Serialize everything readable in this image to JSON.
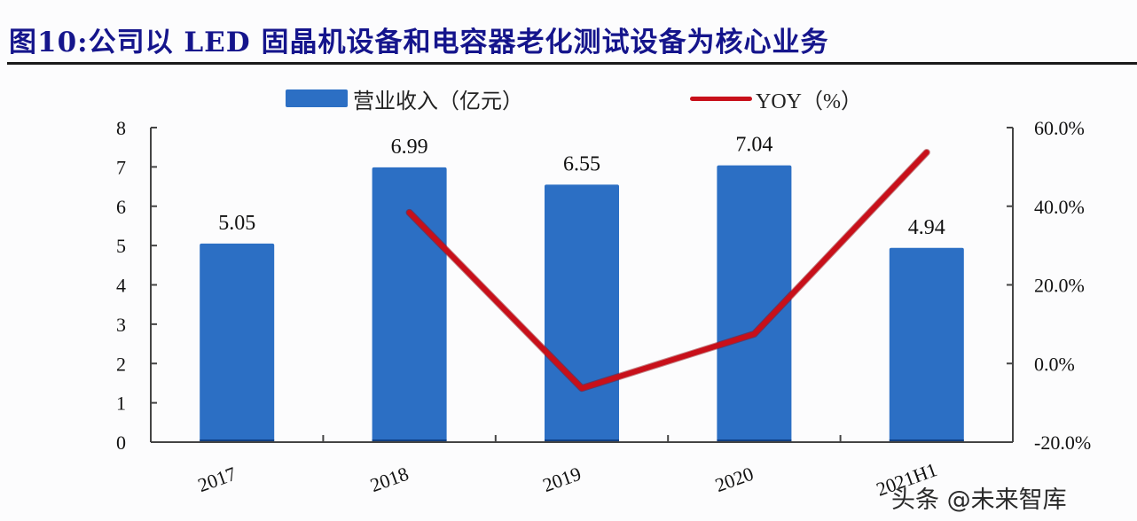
{
  "title": "图10:公司以 LED 固晶机设备和电容器老化测试设备为核心业务",
  "legend": {
    "bar_label": "营业收入（亿元）",
    "line_label": "YOY（%）"
  },
  "watermark": "头条 @未来智库",
  "colors": {
    "bar": "#2c6fc4",
    "line": "#c8101a",
    "title": "#15158c"
  },
  "left_axis_ticks": [
    "0",
    "1",
    "2",
    "3",
    "4",
    "5",
    "6",
    "7",
    "8"
  ],
  "right_axis_ticks": [
    "-20.0%",
    "0.0%",
    "20.0%",
    "40.0%",
    "60.0%"
  ],
  "chart_data": {
    "type": "bar",
    "title": "图10:公司以 LED 固晶机设备和电容器老化测试设备为核心业务",
    "categories": [
      "2017",
      "2018",
      "2019",
      "2020",
      "2021H1"
    ],
    "series": [
      {
        "name": "营业收入（亿元）",
        "type": "bar",
        "axis": "left",
        "values": [
          5.05,
          6.99,
          6.55,
          7.04,
          4.94
        ],
        "labels": [
          "5.05",
          "6.99",
          "6.55",
          "7.04",
          "4.94"
        ]
      },
      {
        "name": "YOY（%）",
        "type": "line",
        "axis": "right",
        "values": [
          null,
          38.4,
          -6.3,
          7.5,
          53.7
        ]
      }
    ],
    "xlabel": "",
    "ylabel": "",
    "ylim": [
      0,
      8
    ],
    "y2lim": [
      -20,
      60
    ],
    "y_ticks": [
      0,
      1,
      2,
      3,
      4,
      5,
      6,
      7,
      8
    ],
    "y2_ticks": [
      "-20.0%",
      "0.0%",
      "20.0%",
      "40.0%",
      "60.0%"
    ],
    "grid": false,
    "legend_position": "top"
  }
}
